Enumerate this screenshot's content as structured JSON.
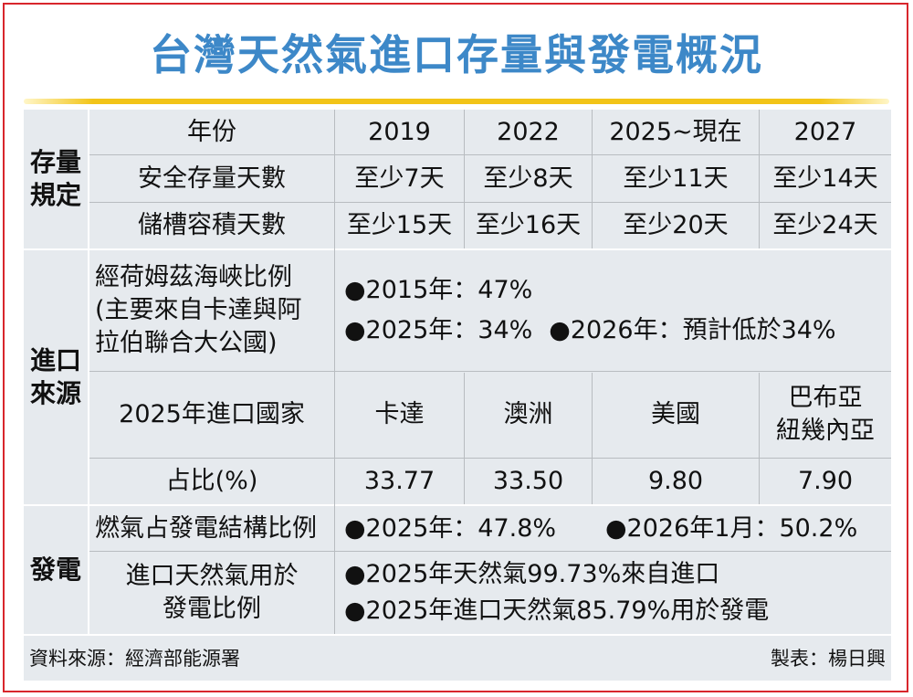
{
  "title": "台灣天然氣進口存量與發電概況",
  "sections": {
    "storage": [
      "存量",
      "規定"
    ],
    "import": [
      "進口",
      "來源"
    ],
    "power": [
      "發電"
    ]
  },
  "storage_table": {
    "header": [
      "年份",
      "2019",
      "2022",
      "2025~現在",
      "2027"
    ],
    "rows": [
      [
        "安全存量天數",
        "至少7天",
        "至少8天",
        "至少11天",
        "至少14天"
      ],
      [
        "儲槽容積天數",
        "至少15天",
        "至少16天",
        "至少20天",
        "至少24天"
      ]
    ]
  },
  "hormuz": {
    "label": [
      "經荷姆茲海峽比例",
      "(主要來自卡達與阿",
      "拉伯聯合大公國)"
    ],
    "line1": "●2015年：47%",
    "line2a": "●2025年：34%",
    "line2b": "●2026年：預計低於34%"
  },
  "import_countries": {
    "label": "2025年進口國家",
    "countries": [
      "卡達",
      "澳洲",
      "美國"
    ],
    "last_country": [
      "巴布亞",
      "紐幾內亞"
    ],
    "share_label": "占比(%)",
    "shares": [
      "33.77",
      "33.50",
      "9.80",
      "7.90"
    ]
  },
  "power": {
    "share_label": "燃氣占發電結構比例",
    "share_a": "●2025年：47.8%",
    "share_b": "●2026年1月：50.2%",
    "usage_label": [
      "進口天然氣用於",
      "發電比例"
    ],
    "usage_lines": [
      "●2025年天然氣99.73%來自進口",
      "●2025年進口天然氣85.79%用於發電"
    ]
  },
  "footer": {
    "source": "資料來源：經濟部能源署",
    "credit": "製表：楊日興"
  },
  "colors": {
    "title": "#3d88c8",
    "rule": "#f2c418",
    "table_bg": "#e6eaee",
    "border": "#d8262c"
  }
}
